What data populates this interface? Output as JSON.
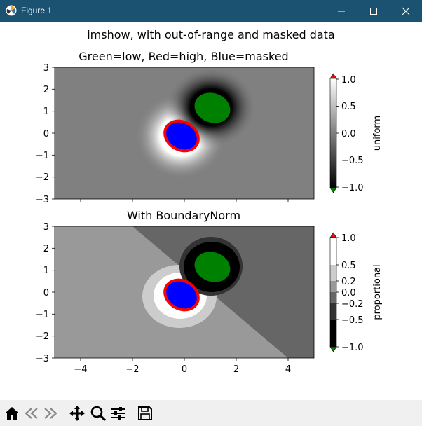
{
  "window": {
    "title": "Figure 1",
    "controls": [
      "minimize",
      "maximize",
      "close"
    ]
  },
  "figure": {
    "suptitle": "imshow, with out-of-range and masked data"
  },
  "chart_data": [
    {
      "type": "heatmap",
      "title": "Green=low, Red=high, Blue=masked",
      "xlim": [
        -5,
        5
      ],
      "ylim": [
        -3,
        3
      ],
      "yticks": [
        "3",
        "2",
        "1",
        "0",
        "−1",
        "−2",
        "−3"
      ],
      "colorbar": {
        "label": "uniform",
        "ticks": [
          "1.0",
          "0.5",
          "0.0",
          "−0.5",
          "−1.0"
        ],
        "range": [
          -1,
          1
        ],
        "extend": "both",
        "over_color": "#ff0000",
        "under_color": "#008000"
      },
      "colors": {
        "low": "#008000",
        "high": "#ff0000",
        "masked": "#0000ff"
      }
    },
    {
      "type": "heatmap",
      "title": "With BoundaryNorm",
      "xlim": [
        -5,
        5
      ],
      "ylim": [
        -3,
        3
      ],
      "xticks": [
        "−4",
        "−2",
        "0",
        "2",
        "4"
      ],
      "yticks": [
        "3",
        "2",
        "1",
        "0",
        "−1",
        "−2",
        "−3"
      ],
      "colorbar": {
        "label": "proportional",
        "ticks": [
          "1.0",
          "0.5",
          "0.2",
          "0.0",
          "−0.2",
          "−0.5",
          "−1.0"
        ],
        "boundaries": [
          -1,
          -0.5,
          -0.2,
          0,
          0.2,
          0.5,
          1
        ],
        "extend": "both",
        "over_color": "#ff0000",
        "under_color": "#008000"
      },
      "colors": {
        "low": "#008000",
        "high": "#ff0000",
        "masked": "#0000ff"
      }
    }
  ],
  "toolbar": {
    "buttons": [
      "home-icon",
      "back-icon",
      "forward-icon",
      "pan-icon",
      "zoom-icon",
      "configure-subplots-icon",
      "save-icon"
    ]
  }
}
